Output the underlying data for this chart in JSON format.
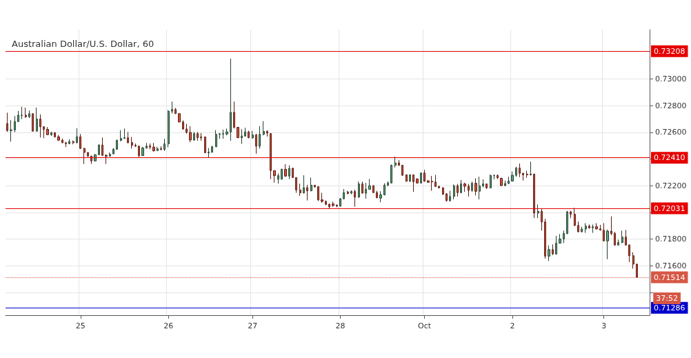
{
  "chart_data": {
    "type": "candlestick",
    "title": "Australian Dollar/U.S. Dollar, 60",
    "categories": [
      null,
      null,
      null,
      null,
      null,
      null,
      null,
      null,
      null,
      null,
      null,
      null,
      null,
      null,
      null,
      null,
      null,
      null,
      null,
      null,
      "25",
      null,
      null,
      null,
      null,
      null,
      null,
      null,
      null,
      null,
      null,
      null,
      null,
      null,
      null,
      null,
      null,
      null,
      null,
      null,
      null,
      null,
      null,
      null,
      "26",
      null,
      null,
      null,
      null,
      null,
      null,
      null,
      null,
      null,
      null,
      null,
      null,
      null,
      null,
      null,
      null,
      null,
      null,
      null,
      null,
      null,
      null,
      "27",
      null,
      null,
      null,
      null,
      null,
      null,
      null,
      null,
      null,
      null,
      null,
      null,
      null,
      null,
      null,
      null,
      null,
      null,
      null,
      null,
      null,
      null,
      null,
      "28",
      null,
      null,
      null,
      null,
      null,
      null,
      null,
      null,
      null,
      null,
      null,
      null,
      null,
      null,
      null,
      null,
      null,
      null,
      null,
      null,
      null,
      null,
      "Oct",
      null,
      null,
      null,
      null,
      null,
      null,
      null,
      null,
      null,
      null,
      null,
      null,
      null,
      null,
      null,
      null,
      null,
      null,
      null,
      null,
      null,
      null,
      null,
      "2",
      null,
      null,
      null,
      null,
      null,
      null,
      null,
      null,
      null,
      null,
      null,
      null,
      null,
      null,
      null,
      null,
      null,
      null,
      null,
      null,
      null,
      null,
      null,
      null,
      "3",
      null,
      null,
      null,
      null,
      null,
      null,
      null,
      null,
      null
    ],
    "ohlc": [
      [
        0.72666,
        0.72748,
        0.72605,
        0.72614
      ],
      [
        0.72614,
        0.72692,
        0.72531,
        0.72619
      ],
      [
        0.72619,
        0.72723,
        0.72602,
        0.72681
      ],
      [
        0.72681,
        0.72761,
        0.72681,
        0.72729
      ],
      [
        0.72726,
        0.72792,
        0.727,
        0.72729
      ],
      [
        0.72729,
        0.72786,
        0.72709,
        0.72717
      ],
      [
        0.72717,
        0.72764,
        0.72709,
        0.7274
      ],
      [
        0.7274,
        0.72743,
        0.72609,
        0.72609
      ],
      [
        0.72609,
        0.72786,
        0.72609,
        0.727
      ],
      [
        0.727,
        0.72735,
        0.72562,
        0.72643
      ],
      [
        0.72643,
        0.72643,
        0.72557,
        0.72623
      ],
      [
        0.72623,
        0.7264,
        0.7258,
        0.72583
      ],
      [
        0.72583,
        0.72605,
        0.72574,
        0.72597
      ],
      [
        0.72597,
        0.72602,
        0.72562,
        0.72567
      ],
      [
        0.72567,
        0.7258,
        0.72536,
        0.72542
      ],
      [
        0.72542,
        0.72554,
        0.72519,
        0.72523
      ],
      [
        0.72523,
        0.72526,
        0.7249,
        0.72516
      ],
      [
        0.72516,
        0.72549,
        0.72511,
        0.72531
      ],
      [
        0.72531,
        0.7254,
        0.72511,
        0.72523
      ],
      [
        0.72523,
        0.72631,
        0.72519,
        0.72567
      ],
      [
        0.72567,
        0.72588,
        0.72476,
        0.7248
      ],
      [
        0.7248,
        0.72485,
        0.72364,
        0.7245
      ],
      [
        0.7245,
        0.7245,
        0.72416,
        0.72423
      ],
      [
        0.72423,
        0.72424,
        0.72364,
        0.72386
      ],
      [
        0.72386,
        0.72436,
        0.72385,
        0.72433
      ],
      [
        0.72433,
        0.72511,
        0.72433,
        0.72505
      ],
      [
        0.72505,
        0.72562,
        0.72424,
        0.72428
      ],
      [
        0.72428,
        0.72436,
        0.72364,
        0.72421
      ],
      [
        0.72423,
        0.7245,
        0.72419,
        0.72436
      ],
      [
        0.7244,
        0.72483,
        0.72435,
        0.72474
      ],
      [
        0.72474,
        0.72547,
        0.72469,
        0.7254
      ],
      [
        0.7254,
        0.72617,
        0.72534,
        0.72555
      ],
      [
        0.72555,
        0.72629,
        0.72552,
        0.7256
      ],
      [
        0.7256,
        0.72604,
        0.72517,
        0.72524
      ],
      [
        0.72524,
        0.72566,
        0.72479,
        0.72503
      ],
      [
        0.72503,
        0.72517,
        0.72492,
        0.72497
      ],
      [
        0.72497,
        0.725,
        0.72414,
        0.72426
      ],
      [
        0.72426,
        0.72492,
        0.72426,
        0.72483
      ],
      [
        0.72483,
        0.72521,
        0.72478,
        0.72498
      ],
      [
        0.72498,
        0.72517,
        0.72474,
        0.7249
      ],
      [
        0.7249,
        0.72521,
        0.72457,
        0.72462
      ],
      [
        0.72464,
        0.72492,
        0.7246,
        0.72478
      ],
      [
        0.72478,
        0.72497,
        0.72466,
        0.72473
      ],
      [
        0.72473,
        0.72552,
        0.72462,
        0.72514
      ],
      [
        0.72514,
        0.72767,
        0.72488,
        0.72759
      ],
      [
        0.72759,
        0.72831,
        0.72741,
        0.72772
      ],
      [
        0.72772,
        0.72784,
        0.72738,
        0.72741
      ],
      [
        0.72741,
        0.72741,
        0.72676,
        0.72678
      ],
      [
        0.72678,
        0.7269,
        0.72621,
        0.72626
      ],
      [
        0.72626,
        0.72664,
        0.72591,
        0.726
      ],
      [
        0.726,
        0.72647,
        0.72526,
        0.72543
      ],
      [
        0.72543,
        0.72604,
        0.72538,
        0.72591
      ],
      [
        0.72591,
        0.72604,
        0.72538,
        0.7256
      ],
      [
        0.72566,
        0.72595,
        0.72538,
        0.7256
      ],
      [
        0.72566,
        0.72569,
        0.72445,
        0.72448
      ],
      [
        0.72447,
        0.72483,
        0.72411,
        0.72452
      ],
      [
        0.72452,
        0.725,
        0.72448,
        0.72492
      ],
      [
        0.72492,
        0.72617,
        0.72492,
        0.72586
      ],
      [
        0.72586,
        0.72595,
        0.72552,
        0.7259
      ],
      [
        0.72588,
        0.72621,
        0.72552,
        0.72591
      ],
      [
        0.72588,
        0.72629,
        0.72578,
        0.72604
      ],
      [
        0.72604,
        0.73152,
        0.72538,
        0.7275
      ],
      [
        0.7275,
        0.72831,
        0.72629,
        0.72638
      ],
      [
        0.72638,
        0.72641,
        0.72559,
        0.7256
      ],
      [
        0.7256,
        0.72624,
        0.72514,
        0.72573
      ],
      [
        0.72573,
        0.72635,
        0.72569,
        0.72604
      ],
      [
        0.72604,
        0.72612,
        0.72557,
        0.7256
      ],
      [
        0.7256,
        0.72612,
        0.72552,
        0.72581
      ],
      [
        0.72581,
        0.7259,
        0.7244,
        0.72497
      ],
      [
        0.72497,
        0.72647,
        0.72478,
        0.72586
      ],
      [
        0.72586,
        0.72685,
        0.72578,
        0.72607
      ],
      [
        0.72607,
        0.72616,
        0.72569,
        0.72595
      ],
      [
        0.72591,
        0.72595,
        0.7225,
        0.72314
      ],
      [
        0.72314,
        0.72314,
        0.72224,
        0.72276
      ],
      [
        0.7225,
        0.72293,
        0.72216,
        0.72276
      ],
      [
        0.7225,
        0.72328,
        0.72247,
        0.72324
      ],
      [
        0.72324,
        0.72362,
        0.72267,
        0.72273
      ],
      [
        0.72273,
        0.72354,
        0.7225,
        0.72331
      ],
      [
        0.72331,
        0.72337,
        0.72259,
        0.72262
      ],
      [
        0.72262,
        0.72262,
        0.72147,
        0.72169
      ],
      [
        0.72169,
        0.72216,
        0.72124,
        0.72147
      ],
      [
        0.72147,
        0.72279,
        0.72142,
        0.72186
      ],
      [
        0.72186,
        0.72207,
        0.7209,
        0.72162
      ],
      [
        0.72162,
        0.72262,
        0.72159,
        0.72204
      ],
      [
        0.72204,
        0.72207,
        0.72186,
        0.72193
      ],
      [
        0.72193,
        0.72197,
        0.72086,
        0.72095
      ],
      [
        0.72095,
        0.72147,
        0.72073,
        0.72083
      ],
      [
        0.72083,
        0.7209,
        0.72055,
        0.72061
      ],
      [
        0.72061,
        0.72069,
        0.72026,
        0.72043
      ],
      [
        0.72064,
        0.72081,
        0.72043,
        0.72052
      ],
      [
        0.72055,
        0.7206,
        0.7204,
        0.72048
      ],
      [
        0.72048,
        0.72108,
        0.72043,
        0.72103
      ],
      [
        0.72103,
        0.72176,
        0.72098,
        0.72149
      ],
      [
        0.72154,
        0.72163,
        0.72137,
        0.72142
      ],
      [
        0.72145,
        0.72166,
        0.72137,
        0.72157
      ],
      [
        0.72157,
        0.72171,
        0.72043,
        0.72115
      ],
      [
        0.72115,
        0.72231,
        0.72111,
        0.72214
      ],
      [
        0.72214,
        0.72231,
        0.72142,
        0.72145
      ],
      [
        0.72145,
        0.72222,
        0.72103,
        0.72174
      ],
      [
        0.72174,
        0.72251,
        0.72171,
        0.722
      ],
      [
        0.722,
        0.72205,
        0.72145,
        0.72149
      ],
      [
        0.72149,
        0.72163,
        0.72106,
        0.72111
      ],
      [
        0.72108,
        0.72159,
        0.72077,
        0.72132
      ],
      [
        0.72132,
        0.72219,
        0.72128,
        0.72205
      ],
      [
        0.72205,
        0.72234,
        0.72197,
        0.72221
      ],
      [
        0.72221,
        0.72359,
        0.72217,
        0.72354
      ],
      [
        0.72354,
        0.72419,
        0.72337,
        0.72371
      ],
      [
        0.72371,
        0.72393,
        0.7235,
        0.72354
      ],
      [
        0.72354,
        0.72357,
        0.72274,
        0.72279
      ],
      [
        0.72282,
        0.72285,
        0.72231,
        0.72234
      ],
      [
        0.72234,
        0.72285,
        0.72231,
        0.72282
      ],
      [
        0.72282,
        0.72285,
        0.72154,
        0.72231
      ],
      [
        0.72251,
        0.72256,
        0.72217,
        0.72221
      ],
      [
        0.72221,
        0.72299,
        0.72217,
        0.72296
      ],
      [
        0.72296,
        0.7232,
        0.72231,
        0.72234
      ],
      [
        0.72236,
        0.72244,
        0.72222,
        0.72226
      ],
      [
        0.72234,
        0.72274,
        0.72163,
        0.72229
      ],
      [
        0.72229,
        0.72282,
        0.72192,
        0.72195
      ],
      [
        0.72195,
        0.722,
        0.7218,
        0.72185
      ],
      [
        0.72185,
        0.72188,
        0.72132,
        0.72137
      ],
      [
        0.7214,
        0.72145,
        0.72081,
        0.72089
      ],
      [
        0.72089,
        0.72163,
        0.72081,
        0.7212
      ],
      [
        0.7212,
        0.7221,
        0.72098,
        0.722
      ],
      [
        0.722,
        0.72214,
        0.7212,
        0.72149
      ],
      [
        0.72149,
        0.72244,
        0.72145,
        0.72214
      ],
      [
        0.72214,
        0.72222,
        0.72154,
        0.72197
      ],
      [
        0.72197,
        0.72214,
        0.7212,
        0.72166
      ],
      [
        0.72166,
        0.72231,
        0.72154,
        0.72219
      ],
      [
        0.72219,
        0.72256,
        0.72128,
        0.72159
      ],
      [
        0.72159,
        0.72268,
        0.72098,
        0.722
      ],
      [
        0.722,
        0.72248,
        0.72188,
        0.72214
      ],
      [
        0.72214,
        0.72217,
        0.72176,
        0.72185
      ],
      [
        0.72185,
        0.72285,
        0.7218,
        0.72277
      ],
      [
        0.72277,
        0.72285,
        0.72248,
        0.72277
      ],
      [
        0.72277,
        0.72285,
        0.72251,
        0.7226
      ],
      [
        0.72256,
        0.72261,
        0.72197,
        0.72202
      ],
      [
        0.72202,
        0.72239,
        0.72197,
        0.72217
      ],
      [
        0.72217,
        0.72268,
        0.72214,
        0.72236
      ],
      [
        0.72236,
        0.72308,
        0.72231,
        0.72279
      ],
      [
        0.72279,
        0.72342,
        0.72268,
        0.72333
      ],
      [
        0.72333,
        0.72367,
        0.72265,
        0.72294
      ],
      [
        0.72294,
        0.72296,
        0.72239,
        0.72282
      ],
      [
        0.72287,
        0.72313,
        0.7226,
        0.72282
      ],
      [
        0.72282,
        0.72381,
        0.72277,
        0.72287
      ],
      [
        0.72287,
        0.72291,
        0.71958,
        0.71995
      ],
      [
        0.71995,
        0.7206,
        0.71958,
        0.72009
      ],
      [
        0.72009,
        0.72026,
        0.71864,
        0.71929
      ],
      [
        0.71929,
        0.71953,
        0.71654,
        0.71673
      ],
      [
        0.71673,
        0.71753,
        0.71637,
        0.71722
      ],
      [
        0.71722,
        0.71761,
        0.71681,
        0.7169
      ],
      [
        0.71688,
        0.71825,
        0.71685,
        0.7177
      ],
      [
        0.7177,
        0.71838,
        0.71767,
        0.71801
      ],
      [
        0.71801,
        0.71864,
        0.7177,
        0.71842
      ],
      [
        0.71842,
        0.72012,
        0.71838,
        0.72005
      ],
      [
        0.72005,
        0.72012,
        0.71958,
        0.71987
      ],
      [
        0.71987,
        0.72035,
        0.71898,
        0.71903
      ],
      [
        0.71903,
        0.71932,
        0.71852,
        0.71855
      ],
      [
        0.71855,
        0.71893,
        0.71852,
        0.71876
      ],
      [
        0.71876,
        0.7192,
        0.71847,
        0.71898
      ],
      [
        0.71898,
        0.7191,
        0.71879,
        0.71884
      ],
      [
        0.71886,
        0.7191,
        0.71847,
        0.71893
      ],
      [
        0.71893,
        0.7192,
        0.71872,
        0.71877
      ],
      [
        0.71877,
        0.71907,
        0.71864,
        0.71869
      ],
      [
        0.71867,
        0.7192,
        0.71784,
        0.71787
      ],
      [
        0.71787,
        0.71872,
        0.7165,
        0.7186
      ],
      [
        0.7186,
        0.71971,
        0.7183,
        0.71842
      ],
      [
        0.71842,
        0.71855,
        0.71753,
        0.71756
      ],
      [
        0.71756,
        0.71796,
        0.71753,
        0.71775
      ],
      [
        0.71775,
        0.71864,
        0.7177,
        0.71816
      ],
      [
        0.71816,
        0.71869,
        0.71753,
        0.71756
      ],
      [
        0.71756,
        0.71761,
        0.71628,
        0.71676
      ],
      [
        0.71676,
        0.71702,
        0.71579,
        0.71613
      ],
      [
        0.71613,
        0.71616,
        0.71514,
        0.71514
      ]
    ],
    "ylim": [
      0.7123,
      0.7337
    ],
    "yticks": [
      {
        "value": 0.714,
        "label": null
      },
      {
        "value": 0.716,
        "label": "0.71600"
      },
      {
        "value": 0.718,
        "label": "0.71800"
      },
      {
        "value": 0.72,
        "label": null
      },
      {
        "value": 0.722,
        "label": "0.72200"
      },
      {
        "value": 0.724,
        "label": null
      },
      {
        "value": 0.726,
        "label": "0.72600"
      },
      {
        "value": 0.728,
        "label": "0.72800"
      },
      {
        "value": 0.73,
        "label": "0.73000"
      }
    ],
    "ref_lines": [
      {
        "axis": "y",
        "value": 0.73208,
        "label": "0.73208",
        "color": "#e60000"
      },
      {
        "axis": "y",
        "value": 0.7241,
        "label": "0.72410",
        "color": "#e60000"
      },
      {
        "axis": "y",
        "value": 0.72031,
        "label": "0.72031",
        "color": "#e60000"
      },
      {
        "axis": "y",
        "value": 0.71514,
        "label": "0.71514",
        "color": "#d65745",
        "line_style": "dotted"
      },
      {
        "axis": "y",
        "value": 0.71286,
        "label": "0.71286",
        "color": "#0000cc"
      }
    ],
    "annotations": [
      "37:52"
    ],
    "grid": true
  }
}
